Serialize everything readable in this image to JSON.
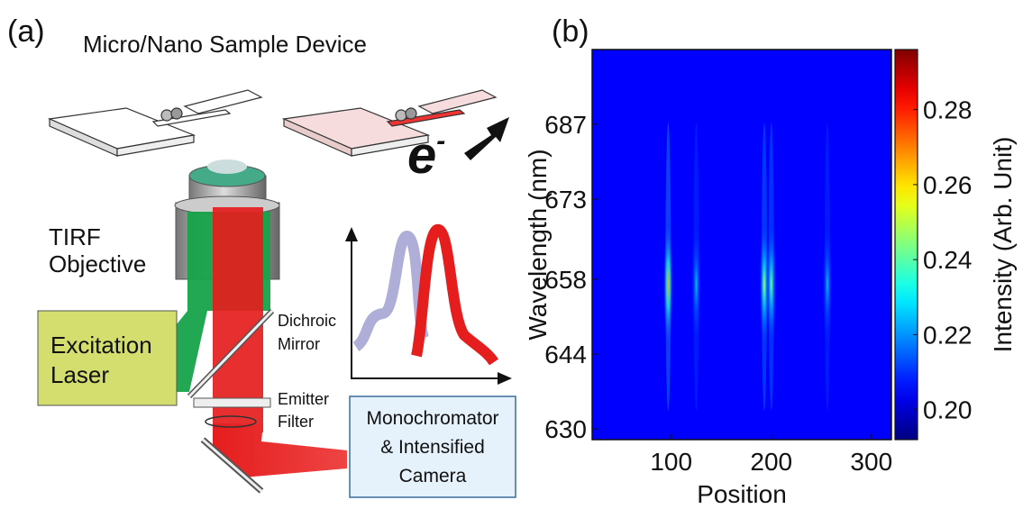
{
  "panel_a": {
    "label": "(a)",
    "title": "Micro/Nano Sample Device",
    "electron": "e",
    "electron_sup": "-",
    "objective": [
      "TIRF",
      "Objective"
    ],
    "laser": [
      "Excitation",
      "Laser"
    ],
    "dichroic": [
      "Dichroic",
      "Mirror"
    ],
    "filter": [
      "Emitter",
      "Filter"
    ],
    "camera": [
      "Monochromator",
      "& Intensified",
      "Camera"
    ]
  },
  "chart_data": {
    "type": "heatmap",
    "panel_label": "(b)",
    "xlabel": "Position",
    "ylabel": "Wavelength (nm)",
    "colorbar_label": "Intensity (Arb. Unit)",
    "xlim": [
      21,
      320
    ],
    "xticks": [
      100,
      200,
      300
    ],
    "ylim": [
      628,
      701
    ],
    "yticks": [
      630,
      644,
      658,
      673,
      687
    ],
    "clim": [
      0.192,
      0.296
    ],
    "cticks": [
      {
        "value": 0.2,
        "label": "0.20"
      },
      0.22,
      0.24,
      0.26,
      0.28
    ],
    "colormap": "jet",
    "background": 0.205,
    "spots": {
      "x": [
        97,
        125,
        193,
        200,
        256
      ],
      "y": [
        657,
        657,
        657,
        657,
        657
      ],
      "values": [
        0.265,
        0.225,
        0.25,
        0.245,
        0.225
      ]
    }
  }
}
